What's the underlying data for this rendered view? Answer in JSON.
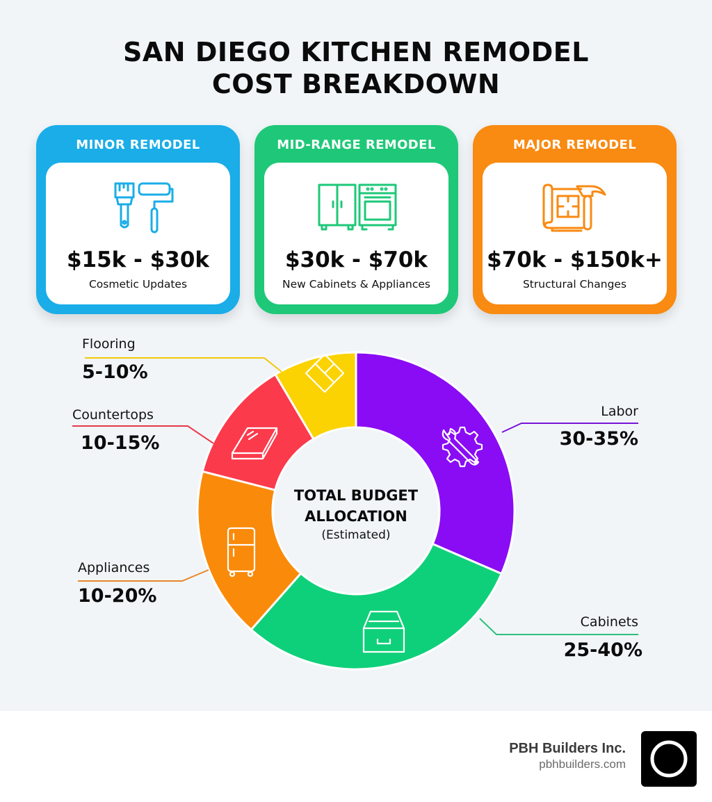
{
  "title": {
    "line1": "SAN DIEGO KITCHEN REMODEL",
    "line2": "COST BREAKDOWN"
  },
  "cards": [
    {
      "header": "MINOR REMODEL",
      "price": "$15k - $30k",
      "subtitle": "Cosmetic Updates",
      "icon": "paintbrush-roller-icon",
      "color": "#1aade8"
    },
    {
      "header": "MID-RANGE REMODEL",
      "price": "$30k - $70k",
      "subtitle": "New Cabinets & Appliances",
      "icon": "cabinet-oven-icon",
      "color": "#1ec878"
    },
    {
      "header": "MAJOR REMODEL",
      "price": "$70k - $150k+",
      "subtitle": "Structural Changes",
      "icon": "blueprint-hammer-icon",
      "color": "#f98a12"
    }
  ],
  "chart": {
    "center_title_line1": "TOTAL BUDGET",
    "center_title_line2": "ALLOCATION",
    "center_subtitle": "(Estimated)"
  },
  "chart_data": {
    "type": "pie",
    "title": "TOTAL BUDGET ALLOCATION (Estimated)",
    "donut": true,
    "categories": [
      "Labor",
      "Cabinets",
      "Appliances",
      "Countertops",
      "Flooring"
    ],
    "ranges": [
      "30-35%",
      "25-40%",
      "10-20%",
      "10-15%",
      "5-10%"
    ],
    "values": [
      31.5,
      30,
      17.5,
      12.5,
      8.5
    ],
    "colors": [
      "#8a0cf5",
      "#0fd07a",
      "#fa8a0a",
      "#fb3a4c",
      "#fbd302"
    ],
    "icons": [
      "wrench-gear-icon",
      "drawer-icon",
      "refrigerator-icon",
      "countertop-slab-icon",
      "floor-tile-icon"
    ],
    "start_angle_deg": 0,
    "direction": "clockwise"
  },
  "labels": [
    {
      "name": "Labor",
      "range": "30-35%"
    },
    {
      "name": "Cabinets",
      "range": "25-40%"
    },
    {
      "name": "Appliances",
      "range": "10-20%"
    },
    {
      "name": "Countertops",
      "range": "10-15%"
    },
    {
      "name": "Flooring",
      "range": "5-10%"
    }
  ],
  "footer": {
    "company": "PBH Builders Inc.",
    "website": "pbhbuilders.com"
  }
}
